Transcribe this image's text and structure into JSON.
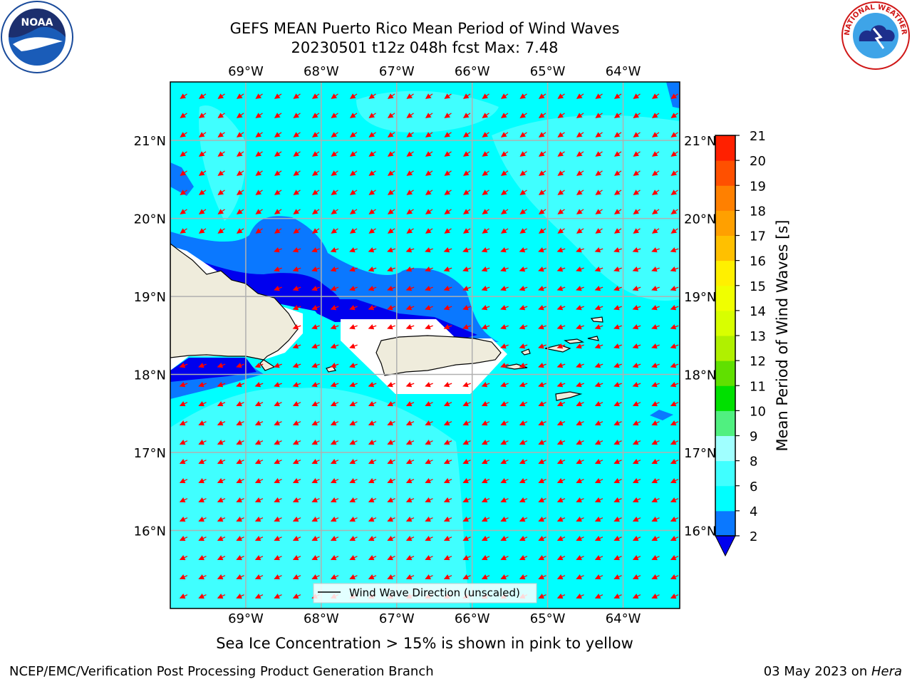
{
  "title_line1": "GEFS MEAN Puerto Rico Mean Period of Wind Waves",
  "title_line2": "20230501 t12z 048h fcst   Max: 7.48",
  "map": {
    "lon_labels": [
      "69°W",
      "68°W",
      "67°W",
      "66°W",
      "65°W",
      "64°W"
    ],
    "lat_labels": [
      "21°N",
      "20°N",
      "19°N",
      "18°N",
      "17°N",
      "16°N"
    ],
    "lons": [
      -69,
      -68,
      -67,
      -66,
      -65,
      -64
    ],
    "lats": [
      21,
      20,
      19,
      18,
      17,
      16
    ],
    "extent": {
      "lon_min": -70.0,
      "lon_max": -63.25,
      "lat_min": 15.0,
      "lat_max": 21.75
    },
    "legend_label": "Wind Wave Direction (unscaled)",
    "arrow_color": "#ff0000",
    "gridline_color": "#b0b0b0",
    "land_color": "#efecdc"
  },
  "colorbar": {
    "label": "Mean Period of Wind Waves [s]",
    "ticks": [
      "2",
      "4",
      "6",
      "8",
      "9",
      "10",
      "11",
      "12",
      "13",
      "14",
      "15",
      "16",
      "17",
      "18",
      "19",
      "20",
      "21"
    ],
    "levels": [
      2,
      4,
      6,
      8,
      9,
      10,
      11,
      12,
      13,
      14,
      15,
      16,
      17,
      18,
      19,
      20,
      21
    ],
    "colors": [
      "#0a78ff",
      "#00ffff",
      "#40ffff",
      "#a0ffff",
      "#50f080",
      "#00e000",
      "#60e000",
      "#b0f000",
      "#d8ff00",
      "#f0ff00",
      "#fff000",
      "#ffc000",
      "#ffa000",
      "#ff8000",
      "#ff5000",
      "#ff2000",
      "#ff0000"
    ],
    "under_color": "#0000ee"
  },
  "subtitle": "Sea Ice Concentration > 15% is shown in pink to yellow",
  "footer_left": "NCEP/EMC/Verification Post Processing Product Generation Branch",
  "footer_right_date": "03 May 2023 on ",
  "footer_right_host": "Hera",
  "logos": {
    "left": "noaa-logo",
    "right": "nws-logo"
  },
  "logo_text": {
    "noaa": "NOAA",
    "nws": "NATIONAL WEATHER SERVICE"
  }
}
